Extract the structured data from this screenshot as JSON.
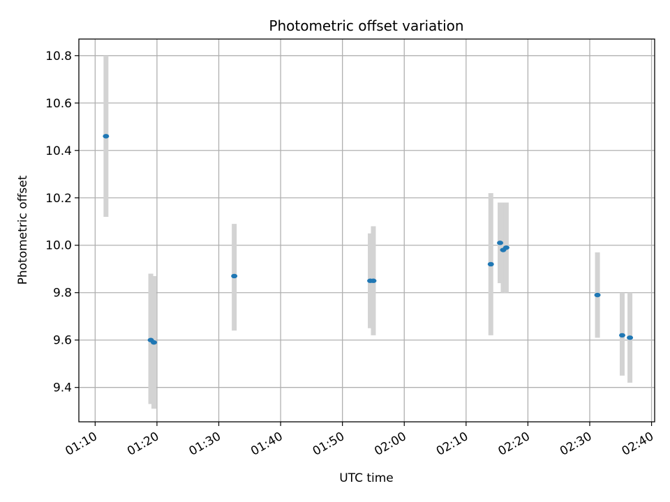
{
  "chart_data": {
    "type": "scatter",
    "title": "Photometric offset variation",
    "xlabel": "UTC time",
    "ylabel": "Photometric offset",
    "x_ticks": [
      "01:10",
      "01:20",
      "01:30",
      "01:40",
      "01:50",
      "02:00",
      "02:10",
      "02:20",
      "02:30",
      "02:40"
    ],
    "y_ticks": [
      "9.4",
      "9.6",
      "9.8",
      "10.0",
      "10.2",
      "10.4",
      "10.6",
      "10.8"
    ],
    "xlim": [
      "01:07:22",
      "02:40:30"
    ],
    "ylim": [
      9.255,
      10.87
    ],
    "grid": true,
    "marker_color": "#1f77b4",
    "errorbar_color": "#d3d3d3",
    "points": [
      {
        "x": "01:11:45",
        "y": 10.46,
        "err_low": 10.12,
        "err_high": 10.8
      },
      {
        "x": "01:19:00",
        "y": 9.6,
        "err_low": 9.33,
        "err_high": 9.88
      },
      {
        "x": "01:19:30",
        "y": 9.59,
        "err_low": 9.31,
        "err_high": 9.87
      },
      {
        "x": "01:32:30",
        "y": 9.87,
        "err_low": 9.64,
        "err_high": 10.09
      },
      {
        "x": "01:54:30",
        "y": 9.85,
        "err_low": 9.65,
        "err_high": 10.05
      },
      {
        "x": "01:55:00",
        "y": 9.85,
        "err_low": 9.62,
        "err_high": 10.08
      },
      {
        "x": "02:14:00",
        "y": 9.92,
        "err_low": 9.62,
        "err_high": 10.22
      },
      {
        "x": "02:15:30",
        "y": 10.01,
        "err_low": 9.84,
        "err_high": 10.18
      },
      {
        "x": "02:16:00",
        "y": 9.98,
        "err_low": 9.8,
        "err_high": 10.18
      },
      {
        "x": "02:16:30",
        "y": 9.99,
        "err_low": 9.8,
        "err_high": 10.18
      },
      {
        "x": "02:31:15",
        "y": 9.79,
        "err_low": 9.61,
        "err_high": 9.97
      },
      {
        "x": "02:35:15",
        "y": 9.62,
        "err_low": 9.45,
        "err_high": 9.8
      },
      {
        "x": "02:36:30",
        "y": 9.61,
        "err_low": 9.42,
        "err_high": 9.8
      }
    ]
  }
}
